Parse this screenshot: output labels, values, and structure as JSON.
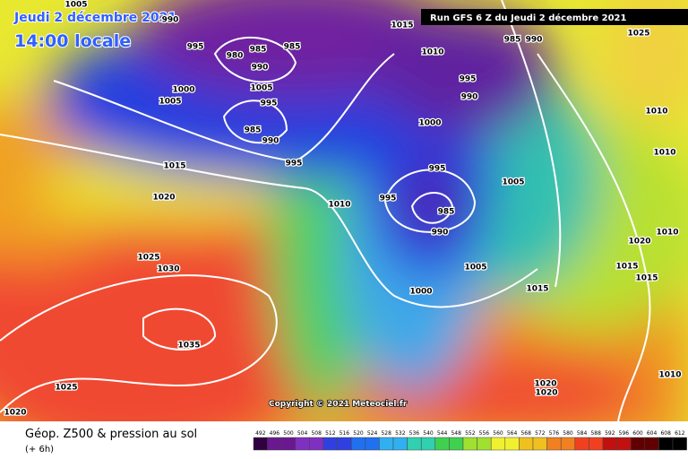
{
  "header": {
    "date": "Jeudi 2 décembre 2021",
    "time": "14:00 locale",
    "run": "Run GFS 6 Z du Jeudi 2 décembre 2021"
  },
  "copyright": "Copyright © 2021 Meteociel.fr",
  "isobar_labels": [
    "990",
    "995",
    "985",
    "985",
    "980",
    "990",
    "1005",
    "995",
    "985",
    "990",
    "1000",
    "1005",
    "1015",
    "1010",
    "985",
    "990",
    "995",
    "990",
    "1000",
    "995",
    "1015",
    "1020",
    "995",
    "995",
    "985",
    "990",
    "1010",
    "1005",
    "1005",
    "1000",
    "1025",
    "1030",
    "1035",
    "1025",
    "1020",
    "1015",
    "1015",
    "1015",
    "1020",
    "1010",
    "1010",
    "1010",
    "1010",
    "1020",
    "1020",
    "1005",
    "1025"
  ],
  "legend": {
    "title": "Géop. Z500 & pression au sol",
    "lead": "(+ 6h)",
    "values": [
      492,
      496,
      500,
      504,
      508,
      512,
      516,
      520,
      524,
      528,
      532,
      536,
      540,
      544,
      548,
      552,
      556,
      560,
      564,
      568,
      572,
      576,
      580,
      584,
      588,
      592,
      596,
      600,
      604,
      608,
      612
    ]
  }
}
